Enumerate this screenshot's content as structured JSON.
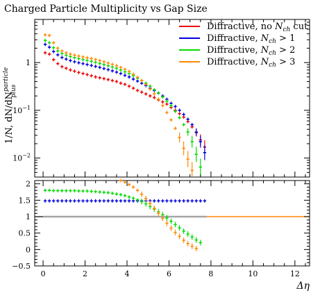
{
  "title": "Charged Particle Multiplicity vs Gap Size",
  "colors": {
    "red": "#ee0000",
    "blue": "#0000dd",
    "green": "#00dd00",
    "orange": "#ff8800",
    "band": "#bbbbbb"
  },
  "chart_data": [
    {
      "type": "scatter",
      "title": "Charged Particle Multiplicity vs Gap Size",
      "ylabel_main": "1/N, dN/dN",
      "ylabel_sup": "particle",
      "ylabel_sub": "plus",
      "yscale": "log",
      "ylim": [
        0.004,
        8
      ],
      "yticks": [
        {
          "v": 1,
          "b": "1",
          "e": ""
        },
        {
          "v": 0.1,
          "b": "10",
          "e": "−1"
        },
        {
          "v": 0.01,
          "b": "10",
          "e": "−2"
        }
      ],
      "legend_position": "top-right",
      "legend": [
        {
          "pre": "Diffractive, no ",
          "var": "N",
          "sub": "ch",
          "post": " cut",
          "color": "red"
        },
        {
          "pre": "Diffractive, ",
          "var": "N",
          "sub": "ch",
          "post": " > 1",
          "color": "blue"
        },
        {
          "pre": "Diffractive, ",
          "var": "N",
          "sub": "ch",
          "post": " > 2",
          "color": "green"
        },
        {
          "pre": "Diffractive, ",
          "var": "N",
          "sub": "ch",
          "post": " > 3",
          "color": "orange"
        }
      ],
      "x": [
        0.1,
        0.3,
        0.5,
        0.7,
        0.9,
        1.1,
        1.3,
        1.5,
        1.7,
        1.9,
        2.1,
        2.3,
        2.5,
        2.7,
        2.9,
        3.1,
        3.3,
        3.5,
        3.7,
        3.9,
        4.1,
        4.3,
        4.5,
        4.7,
        4.9,
        5.1,
        5.3,
        5.5,
        5.7,
        5.9,
        6.1,
        6.3,
        6.5,
        6.7,
        6.9,
        7.1,
        7.3,
        7.5,
        7.7
      ],
      "series": [
        {
          "color": "red",
          "values": [
            1.6,
            1.5,
            1.15,
            0.95,
            0.82,
            0.76,
            0.7,
            0.66,
            0.62,
            0.59,
            0.56,
            0.53,
            0.5,
            0.48,
            0.46,
            0.44,
            0.42,
            0.4,
            0.37,
            0.35,
            0.32,
            0.29,
            0.26,
            0.24,
            0.22,
            0.2,
            0.185,
            0.165,
            0.15,
            0.135,
            0.115,
            0.1,
            0.085,
            0.072,
            0.058,
            0.045,
            0.034,
            0.024,
            0.017
          ]
        },
        {
          "color": "blue",
          "values": [
            2.4,
            2.1,
            1.7,
            1.45,
            1.28,
            1.18,
            1.1,
            1.04,
            0.99,
            0.95,
            0.91,
            0.87,
            0.83,
            0.79,
            0.75,
            0.71,
            0.67,
            0.63,
            0.59,
            0.54,
            0.5,
            0.45,
            0.41,
            0.37,
            0.33,
            0.29,
            0.26,
            0.23,
            0.2,
            0.17,
            0.14,
            0.12,
            0.1,
            0.082,
            0.065,
            0.05,
            0.035,
            0.022,
            0.013
          ]
        },
        {
          "color": "green",
          "values": [
            2.9,
            2.6,
            2.05,
            1.75,
            1.55,
            1.43,
            1.34,
            1.27,
            1.21,
            1.16,
            1.11,
            1.06,
            1.01,
            0.96,
            0.91,
            0.86,
            0.81,
            0.76,
            0.7,
            0.64,
            0.59,
            0.53,
            0.47,
            0.42,
            0.37,
            0.32,
            0.27,
            0.23,
            0.19,
            0.155,
            0.125,
            0.095,
            0.07,
            0.05,
            0.035,
            0.022,
            0.012,
            0.0065,
            null
          ]
        },
        {
          "color": "orange",
          "values": [
            3.8,
            3.7,
            2.6,
            2.0,
            1.75,
            1.6,
            1.5,
            1.43,
            1.37,
            1.31,
            1.26,
            1.21,
            1.16,
            1.1,
            1.04,
            0.98,
            0.92,
            0.86,
            0.79,
            0.72,
            0.65,
            0.57,
            0.49,
            0.42,
            0.35,
            0.28,
            0.22,
            0.17,
            0.125,
            0.09,
            0.063,
            0.042,
            0.027,
            0.016,
            0.0095,
            0.0055,
            0.0028,
            null,
            null
          ]
        }
      ]
    },
    {
      "type": "scatter",
      "xlabel": "Δη",
      "xlim": [
        -0.4,
        12.7
      ],
      "xticks": [
        0,
        2,
        4,
        6,
        8,
        10,
        12
      ],
      "ylim": [
        -0.5,
        2.1
      ],
      "yticks": [
        2,
        1.5,
        1,
        0.5,
        0,
        -0.5
      ],
      "ytick_labels": [
        "2",
        "1.5",
        "1",
        "0.5",
        "0",
        "−0.5"
      ],
      "reference_line": 1,
      "x": [
        0.1,
        0.3,
        0.5,
        0.7,
        0.9,
        1.1,
        1.3,
        1.5,
        1.7,
        1.9,
        2.1,
        2.3,
        2.5,
        2.7,
        2.9,
        3.1,
        3.3,
        3.5,
        3.7,
        3.9,
        4.1,
        4.3,
        4.5,
        4.7,
        4.9,
        5.1,
        5.3,
        5.5,
        5.7,
        5.9,
        6.1,
        6.3,
        6.5,
        6.7,
        6.9,
        7.1,
        7.3,
        7.5,
        7.7
      ],
      "series": [
        {
          "color": "blue",
          "values": [
            1.48,
            1.48,
            1.48,
            1.48,
            1.48,
            1.48,
            1.48,
            1.48,
            1.48,
            1.48,
            1.48,
            1.48,
            1.48,
            1.48,
            1.48,
            1.48,
            1.48,
            1.48,
            1.48,
            1.48,
            1.48,
            1.48,
            1.48,
            1.48,
            1.48,
            1.48,
            1.48,
            1.48,
            1.48,
            1.48,
            1.48,
            1.48,
            1.48,
            1.48,
            1.48,
            1.48,
            1.48,
            1.48,
            1.48
          ]
        },
        {
          "color": "green",
          "values": [
            1.8,
            1.8,
            1.79,
            1.79,
            1.79,
            1.79,
            1.79,
            1.79,
            1.78,
            1.78,
            1.78,
            1.77,
            1.76,
            1.75,
            1.74,
            1.73,
            1.71,
            1.69,
            1.67,
            1.64,
            1.6,
            1.56,
            1.51,
            1.46,
            1.39,
            1.31,
            1.23,
            1.15,
            1.06,
            0.96,
            0.86,
            0.76,
            0.66,
            0.56,
            0.47,
            0.38,
            0.29,
            0.21,
            null
          ]
        },
        {
          "color": "orange",
          "values": [
            null,
            null,
            null,
            null,
            null,
            null,
            null,
            null,
            null,
            null,
            null,
            null,
            null,
            null,
            null,
            null,
            null,
            null,
            2.1,
            2.05,
            1.98,
            1.9,
            1.8,
            1.68,
            1.55,
            1.4,
            1.25,
            1.1,
            0.95,
            0.8,
            0.65,
            0.52,
            0.4,
            0.28,
            0.18,
            0.1,
            0.03,
            null,
            null
          ]
        }
      ]
    }
  ]
}
